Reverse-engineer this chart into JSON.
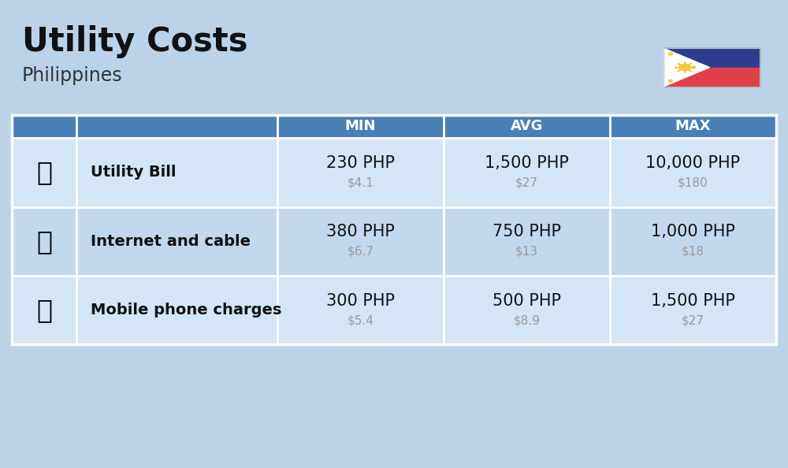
{
  "title": "Utility Costs",
  "subtitle": "Philippines",
  "background_color": "#bad3e8",
  "header_bg_color": "#4a7fb5",
  "header_text_color": "#ffffff",
  "row_bg_color_1": "#d4e5f5",
  "row_bg_color_2": "#c2d8ee",
  "header_labels": [
    "MIN",
    "AVG",
    "MAX"
  ],
  "rows": [
    {
      "label": "Utility Bill",
      "min_php": "230 PHP",
      "min_usd": "$4.1",
      "avg_php": "1,500 PHP",
      "avg_usd": "$27",
      "max_php": "10,000 PHP",
      "max_usd": "$180"
    },
    {
      "label": "Internet and cable",
      "min_php": "380 PHP",
      "min_usd": "$6.7",
      "avg_php": "750 PHP",
      "avg_usd": "$13",
      "max_php": "1,000 PHP",
      "max_usd": "$18"
    },
    {
      "label": "Mobile phone charges",
      "min_php": "300 PHP",
      "min_usd": "$5.4",
      "avg_php": "500 PHP",
      "avg_usd": "$8.9",
      "max_php": "1,500 PHP",
      "max_usd": "$27"
    }
  ],
  "php_fontsize": 15,
  "usd_fontsize": 11,
  "label_fontsize": 14,
  "title_fontsize": 30,
  "subtitle_fontsize": 17,
  "usd_color": "#999999",
  "label_color": "#111111",
  "php_color": "#111111",
  "flag_blue": "#2e3d8f",
  "flag_red": "#e0404a",
  "flag_white": "#ffffff",
  "flag_yellow": "#f5c842"
}
